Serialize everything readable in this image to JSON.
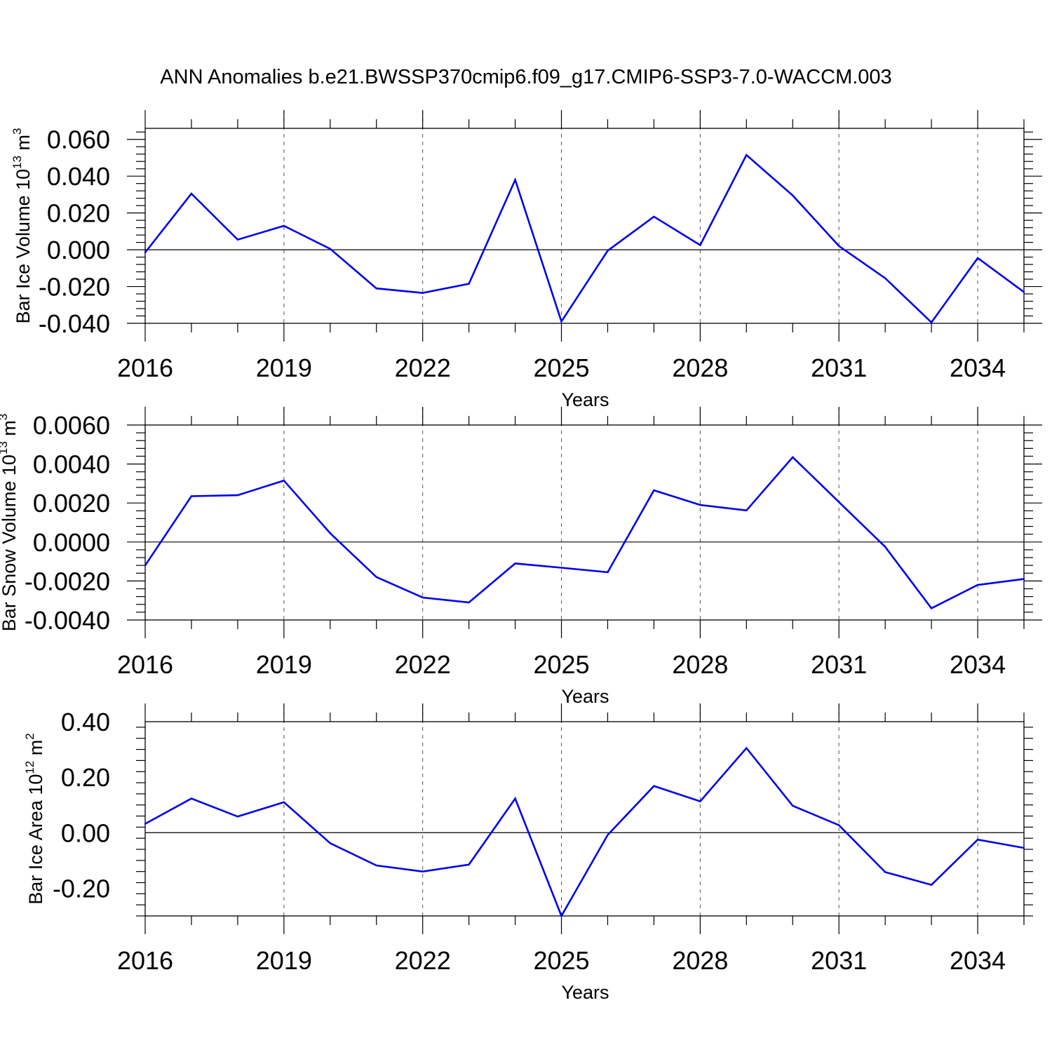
{
  "figure_title": "ANN Anomalies b.e21.BWSSP370cmip6.f09_g17.CMIP6-SSP3-7.0-WACCM.003",
  "colors": {
    "line": "#0000ee",
    "axes": "#000000",
    "grid": "#555555",
    "background": "#ffffff"
  },
  "chart_data": [
    {
      "type": "line",
      "title": "ANN Anomalies b.e21.BWSSP370cmip6.f09_g17.CMIP6-SSP3-7.0-WACCM.003",
      "xlabel": "Years",
      "ylabel": {
        "text": "Bar Ice Volume 10",
        "exponent": "13",
        "unit": " m",
        "unit_exponent": "3"
      },
      "xlim": [
        2016,
        2035
      ],
      "ylim": [
        -0.04,
        0.066
      ],
      "x_ticks": [
        2016,
        2019,
        2022,
        2025,
        2028,
        2031,
        2034
      ],
      "x_tick_labels": [
        "2016",
        "2019",
        "2022",
        "2025",
        "2028",
        "2031",
        "2034"
      ],
      "y_ticks": [
        -0.04,
        -0.02,
        0.0,
        0.02,
        0.04,
        0.06
      ],
      "y_tick_labels": [
        "-0.040",
        "-0.020",
        "0.000",
        "0.020",
        "0.040",
        "0.060"
      ],
      "x_grid": "dashed at major x ticks",
      "series": [
        {
          "name": "Bar Ice Volume",
          "x": [
            2016,
            2017,
            2018,
            2019,
            2020,
            2021,
            2022,
            2023,
            2024,
            2025,
            2026,
            2027,
            2028,
            2029,
            2030,
            2031,
            2032,
            2033,
            2034,
            2035
          ],
          "values": [
            -0.0015,
            0.0305,
            0.0055,
            0.013,
            0.0005,
            -0.021,
            -0.0235,
            -0.0185,
            0.038,
            -0.039,
            -0.0005,
            0.018,
            0.0025,
            0.0515,
            0.0295,
            0.002,
            -0.0155,
            -0.0395,
            -0.0045,
            -0.023
          ]
        }
      ]
    },
    {
      "type": "line",
      "xlabel": "Years",
      "ylabel": {
        "text": "Bar Snow Volume 10",
        "exponent": "13",
        "unit": " m",
        "unit_exponent": "3"
      },
      "xlim": [
        2016,
        2035
      ],
      "ylim": [
        -0.004,
        0.006
      ],
      "x_ticks": [
        2016,
        2019,
        2022,
        2025,
        2028,
        2031,
        2034
      ],
      "x_tick_labels": [
        "2016",
        "2019",
        "2022",
        "2025",
        "2028",
        "2031",
        "2034"
      ],
      "y_ticks": [
        -0.004,
        -0.002,
        0.0,
        0.002,
        0.004,
        0.006
      ],
      "y_tick_labels": [
        "-0.0040",
        "-0.0020",
        "0.0000",
        "0.0020",
        "0.0040",
        "0.0060"
      ],
      "x_grid": "dashed at major x ticks",
      "series": [
        {
          "name": "Bar Snow Volume",
          "x": [
            2016,
            2017,
            2018,
            2019,
            2020,
            2021,
            2022,
            2023,
            2024,
            2025,
            2026,
            2027,
            2028,
            2029,
            2030,
            2031,
            2032,
            2033,
            2034,
            2035
          ],
          "values": [
            -0.0012,
            0.00235,
            0.0024,
            0.00315,
            0.00045,
            -0.0018,
            -0.00285,
            -0.0031,
            -0.0011,
            -0.00132,
            -0.00155,
            0.00265,
            0.0019,
            0.00162,
            0.00435,
            0.00205,
            -0.00025,
            -0.0034,
            -0.0022,
            -0.0019
          ]
        }
      ]
    },
    {
      "type": "line",
      "xlabel": "Years",
      "ylabel": {
        "text": "Bar Ice Area 10",
        "exponent": "12",
        "unit": " m",
        "unit_exponent": "2"
      },
      "xlim": [
        2016,
        2035
      ],
      "ylim": [
        -0.3,
        0.4
      ],
      "x_ticks": [
        2016,
        2019,
        2022,
        2025,
        2028,
        2031,
        2034
      ],
      "x_tick_labels": [
        "2016",
        "2019",
        "2022",
        "2025",
        "2028",
        "2031",
        "2034"
      ],
      "y_ticks": [
        -0.2,
        0.0,
        0.2,
        0.4
      ],
      "y_tick_labels": [
        "-0.20",
        "0.00",
        "0.20",
        "0.40"
      ],
      "x_grid": "dashed at major x ticks",
      "series": [
        {
          "name": "Bar Ice Area",
          "x": [
            2016,
            2017,
            2018,
            2019,
            2020,
            2021,
            2022,
            2023,
            2024,
            2025,
            2026,
            2027,
            2028,
            2029,
            2030,
            2031,
            2032,
            2033,
            2034,
            2035
          ],
          "values": [
            0.032,
            0.123,
            0.058,
            0.11,
            -0.038,
            -0.118,
            -0.14,
            -0.115,
            0.123,
            -0.3,
            -0.008,
            0.168,
            0.113,
            0.305,
            0.097,
            0.027,
            -0.142,
            -0.188,
            -0.025,
            -0.055
          ]
        }
      ]
    }
  ]
}
